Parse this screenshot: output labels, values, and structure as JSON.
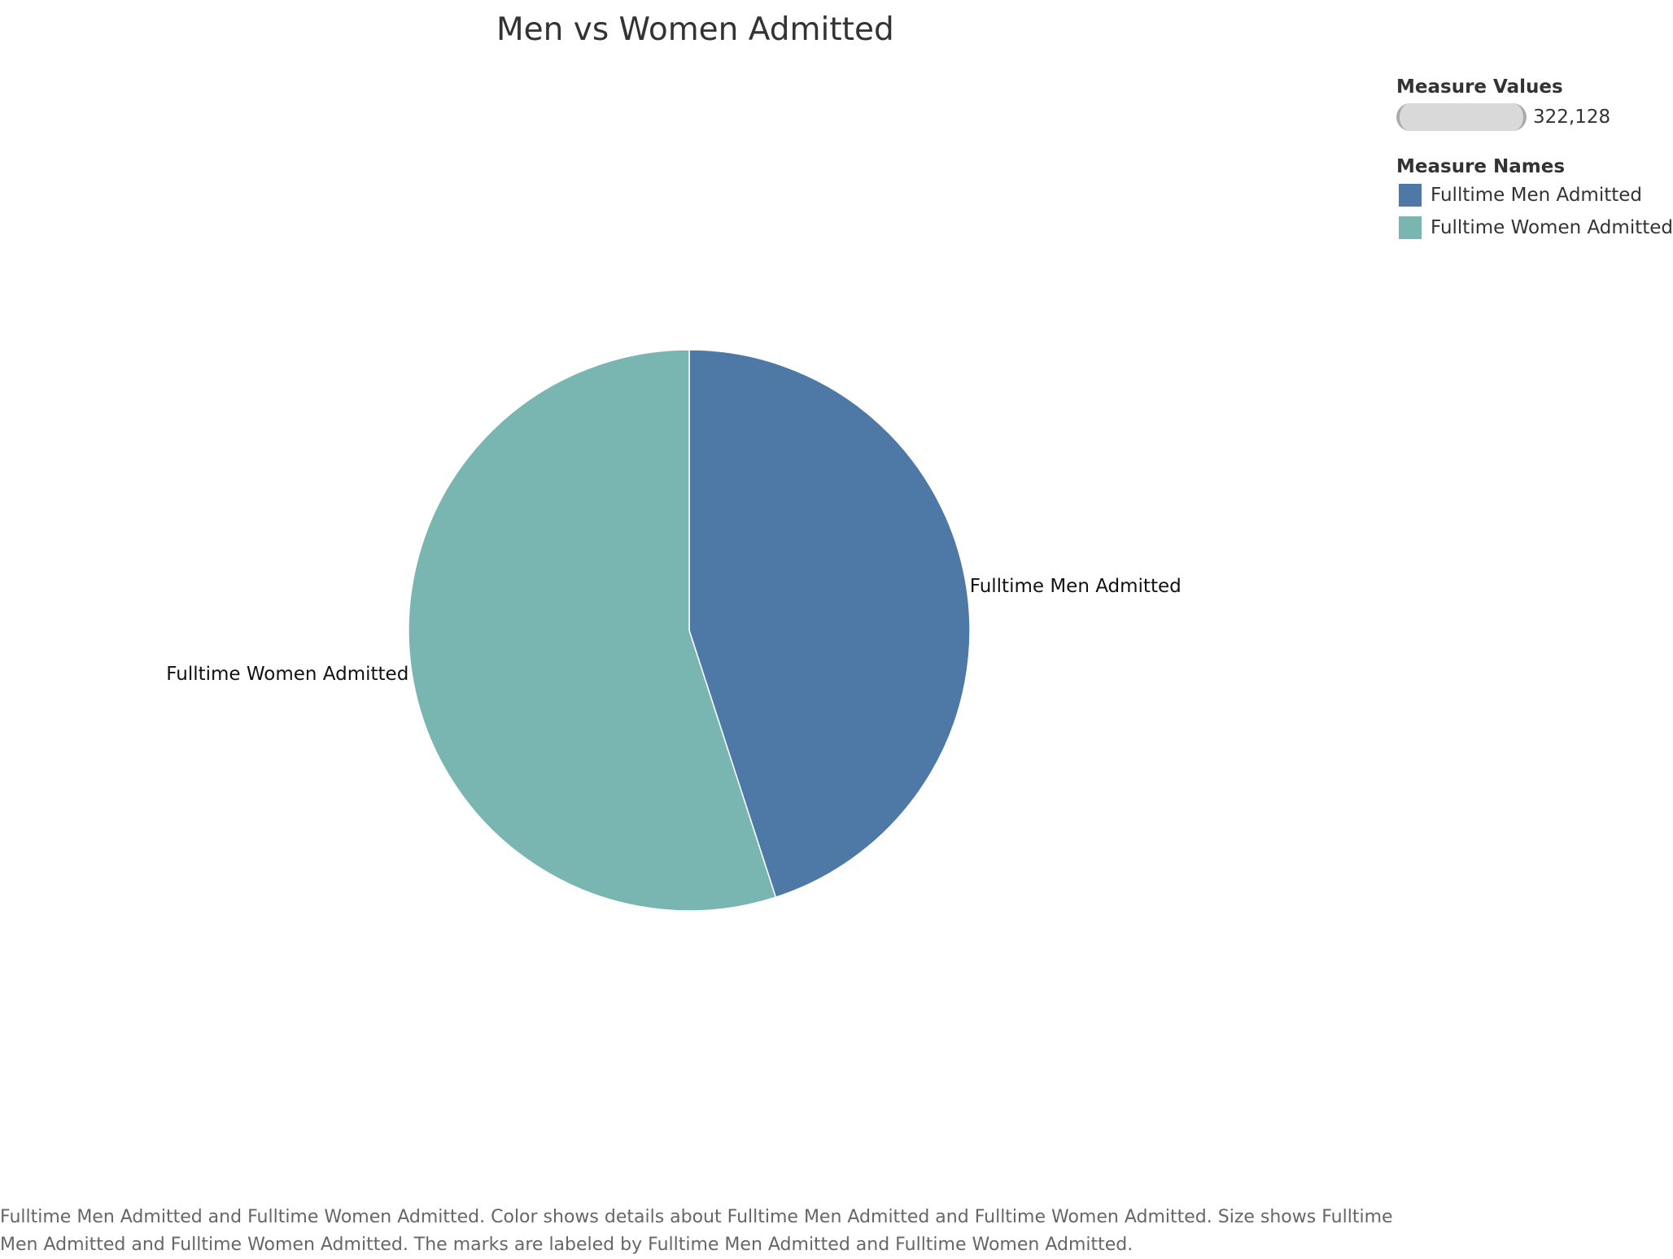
{
  "chart_data": {
    "type": "pie",
    "title": "Men vs Women Admitted",
    "categories": [
      "Fulltime Men Admitted",
      "Fulltime Women Admitted"
    ],
    "values": [
      145000,
      177128
    ],
    "total": 322128,
    "colors": [
      "#4e79a7",
      "#79b6b2"
    ],
    "start_angle_deg": 0,
    "direction": "clockwise",
    "slice_labels": [
      "Fulltime Men Admitted",
      "Fulltime Women Admitted"
    ],
    "legend": {
      "size_title": "Measure Values",
      "size_value": "322,128",
      "color_title": "Measure Names",
      "entries": [
        {
          "label": "Fulltime Men Admitted",
          "color": "#4e79a7"
        },
        {
          "label": "Fulltime Women Admitted",
          "color": "#79b6b2"
        }
      ],
      "placement": "top-right"
    }
  },
  "caption": "Fulltime Men Admitted and Fulltime Women Admitted.  Color shows details about Fulltime Men Admitted and Fulltime Women Admitted.  Size shows Fulltime Men Admitted and Fulltime Women Admitted.  The marks are labeled by Fulltime Men Admitted and Fulltime Women Admitted."
}
